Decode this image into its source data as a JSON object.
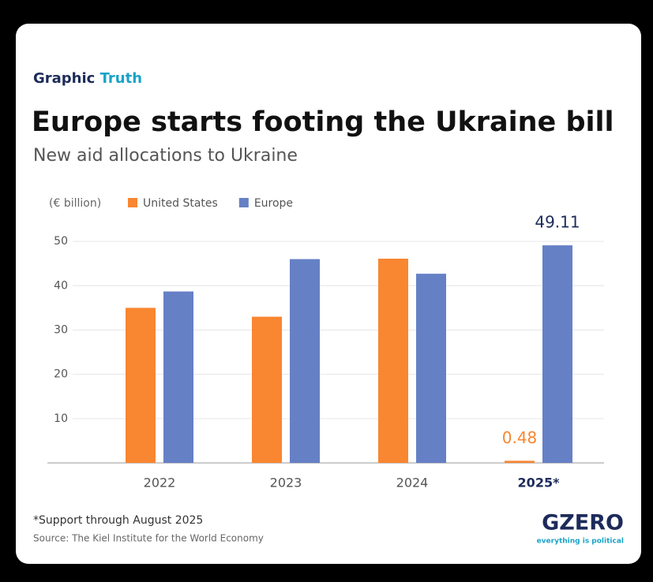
{
  "chart_data": {
    "type": "bar",
    "kicker": [
      "Graphic",
      "Truth"
    ],
    "title": "Europe starts footing the Ukraine bill",
    "subtitle": "New aid allocations to Ukraine",
    "y_label": "(€ billion)",
    "categories": [
      "2022",
      "2023",
      "2024",
      "2025*"
    ],
    "series": [
      {
        "name": "United States",
        "color": "#f98631",
        "values": [
          35,
          33,
          46.1,
          0.48
        ],
        "value_labels": [
          null,
          null,
          null,
          "0.48"
        ]
      },
      {
        "name": "Europe",
        "color": "#6680c6",
        "values": [
          38.7,
          46,
          42.7,
          49.11
        ],
        "value_labels": [
          null,
          null,
          null,
          "49.11"
        ]
      }
    ],
    "ylim": [
      0,
      55
    ],
    "yticks": [
      10,
      20,
      30,
      40,
      50
    ],
    "grid": true
  },
  "footer": {
    "note": "*Support through August 2025",
    "source": "Source: The Kiel Institute for the World Economy",
    "logo": "GZERO",
    "tagline": "everything is political"
  }
}
